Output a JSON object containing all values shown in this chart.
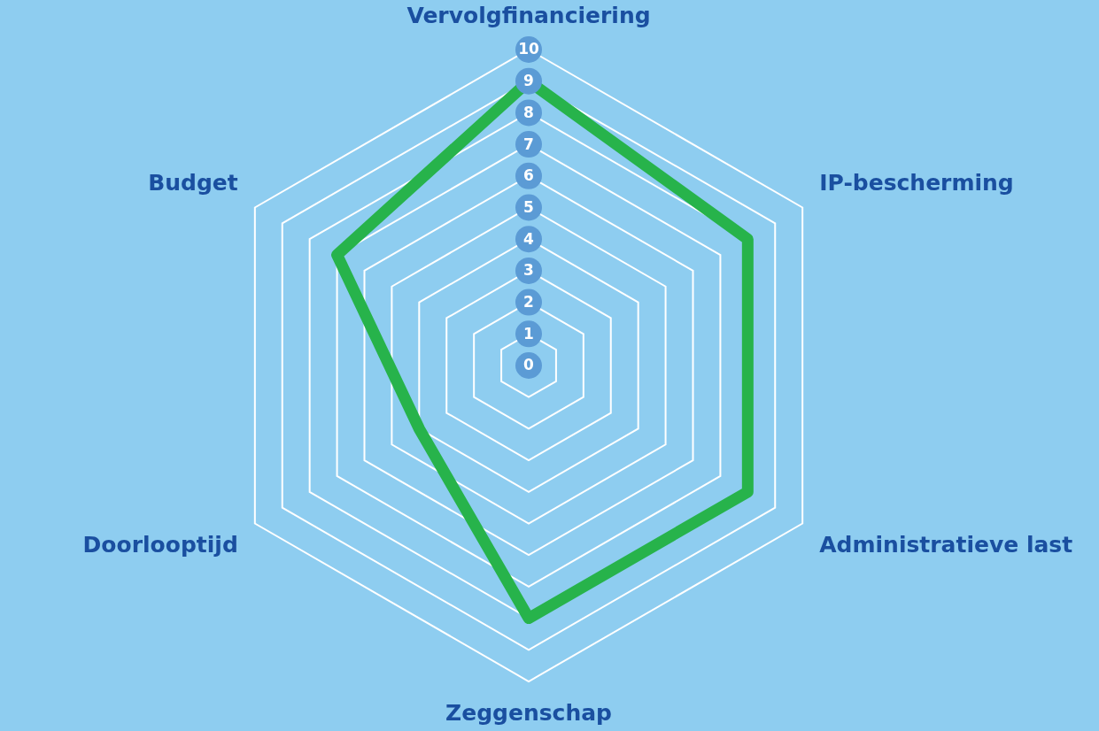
{
  "chart_data": {
    "type": "radar",
    "categories": [
      "Vervolgfinanciering",
      "IP-bescherming",
      "Administratieve last",
      "Zeggenschap",
      "Doorlooptijd",
      "Budget"
    ],
    "series": [
      {
        "color": "#27b34b",
        "values": [
          9,
          8,
          8,
          8,
          4,
          7
        ]
      }
    ],
    "ylim": [
      0,
      10
    ],
    "yticks": [
      0,
      1,
      2,
      3,
      4,
      5,
      6,
      7,
      8,
      9,
      10
    ],
    "grid": true,
    "marker": "none"
  }
}
